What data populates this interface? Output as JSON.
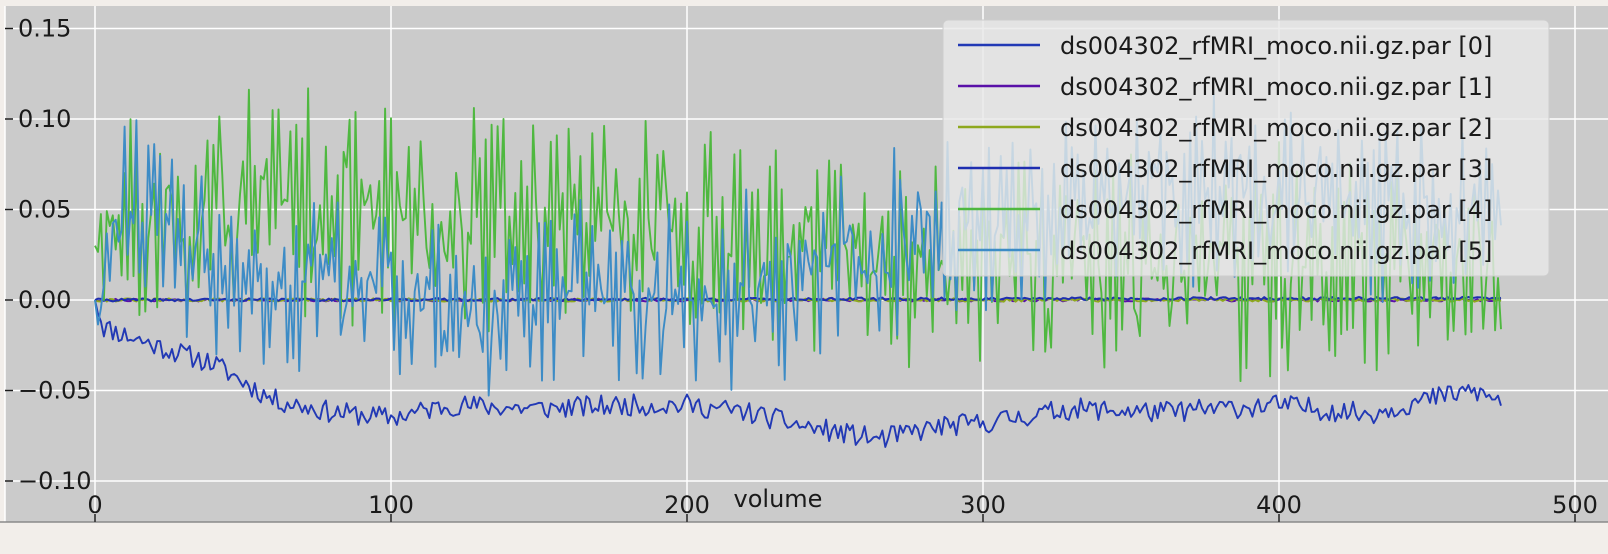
{
  "chart_data": {
    "type": "line",
    "xlabel": "volume",
    "ylabel": "",
    "xlim": [
      0,
      500
    ],
    "ylim": [
      -0.1,
      0.16
    ],
    "x_ticks": [
      0,
      100,
      200,
      300,
      400,
      500
    ],
    "x_tick_labels": [
      "0",
      "100",
      "200",
      "300",
      "400",
      "500"
    ],
    "y_ticks": [
      -0.1,
      -0.05,
      0.0,
      0.05,
      0.1,
      0.15
    ],
    "y_tick_labels": [
      "−0.10",
      "−0.05",
      "0.00",
      "0.05",
      "0.10",
      "0.15"
    ],
    "grid": true,
    "legend_position": "top-right",
    "background": "#cbcbcb",
    "x_range": [
      0,
      475
    ],
    "series": [
      {
        "name": "ds004302_rfMRI_moco.nii.gz.par [0]",
        "color": "#2239b5",
        "pattern": "drift",
        "anchors": [
          [
            0,
            0.0
          ],
          [
            3,
            -0.015
          ],
          [
            20,
            -0.025
          ],
          [
            40,
            -0.035
          ],
          [
            60,
            -0.055
          ],
          [
            80,
            -0.062
          ],
          [
            100,
            -0.065
          ],
          [
            120,
            -0.058
          ],
          [
            150,
            -0.06
          ],
          [
            180,
            -0.058
          ],
          [
            200,
            -0.058
          ],
          [
            220,
            -0.062
          ],
          [
            240,
            -0.07
          ],
          [
            265,
            -0.077
          ],
          [
            285,
            -0.07
          ],
          [
            300,
            -0.068
          ],
          [
            330,
            -0.06
          ],
          [
            360,
            -0.062
          ],
          [
            400,
            -0.058
          ],
          [
            430,
            -0.063
          ],
          [
            450,
            -0.055
          ],
          [
            465,
            -0.05
          ],
          [
            475,
            -0.056
          ]
        ],
        "noise": 0.006,
        "seed": 11
      },
      {
        "name": "ds004302_rfMRI_moco.nii.gz.par [1]",
        "color": "#5a10a8",
        "pattern": "flat",
        "anchors": [
          [
            0,
            0.0
          ],
          [
            475,
            0.0
          ]
        ],
        "noise": 0.0008,
        "seed": 21
      },
      {
        "name": "ds004302_rfMRI_moco.nii.gz.par [2]",
        "color": "#8ea81e",
        "pattern": "flat",
        "anchors": [
          [
            0,
            0.0
          ],
          [
            475,
            0.0
          ]
        ],
        "noise": 0.0009,
        "seed": 31
      },
      {
        "name": "ds004302_rfMRI_moco.nii.gz.par [3]",
        "color": "#1e2eb0",
        "pattern": "flat",
        "anchors": [
          [
            0,
            0.0
          ],
          [
            475,
            0.001
          ]
        ],
        "noise": 0.0008,
        "seed": 41
      },
      {
        "name": "ds004302_rfMRI_moco.nii.gz.par [4]",
        "color": "#4fb840",
        "pattern": "oscillating",
        "anchors": [
          [
            0,
            0.03
          ],
          [
            50,
            0.05
          ],
          [
            100,
            0.05
          ],
          [
            150,
            0.045
          ],
          [
            200,
            0.04
          ],
          [
            240,
            0.025
          ],
          [
            300,
            0.02
          ],
          [
            350,
            0.015
          ],
          [
            400,
            0.02
          ],
          [
            450,
            0.02
          ],
          [
            475,
            0.025
          ]
        ],
        "noise": 0.038,
        "seed": 51
      },
      {
        "name": "ds004302_rfMRI_moco.nii.gz.par [5]",
        "color": "#3d8cc6",
        "pattern": "oscillating",
        "anchors": [
          [
            0,
            0.0
          ],
          [
            10,
            0.06
          ],
          [
            30,
            0.03
          ],
          [
            60,
            0.0
          ],
          [
            80,
            0.01
          ],
          [
            100,
            0.005
          ],
          [
            125,
            -0.01
          ],
          [
            150,
            0.0
          ],
          [
            180,
            0.0
          ],
          [
            210,
            0.0
          ],
          [
            250,
            0.02
          ],
          [
            290,
            0.04
          ],
          [
            330,
            0.05
          ],
          [
            370,
            0.06
          ],
          [
            400,
            0.06
          ],
          [
            430,
            0.05
          ],
          [
            475,
            0.05
          ]
        ],
        "noise": 0.032,
        "seed": 61
      }
    ]
  }
}
